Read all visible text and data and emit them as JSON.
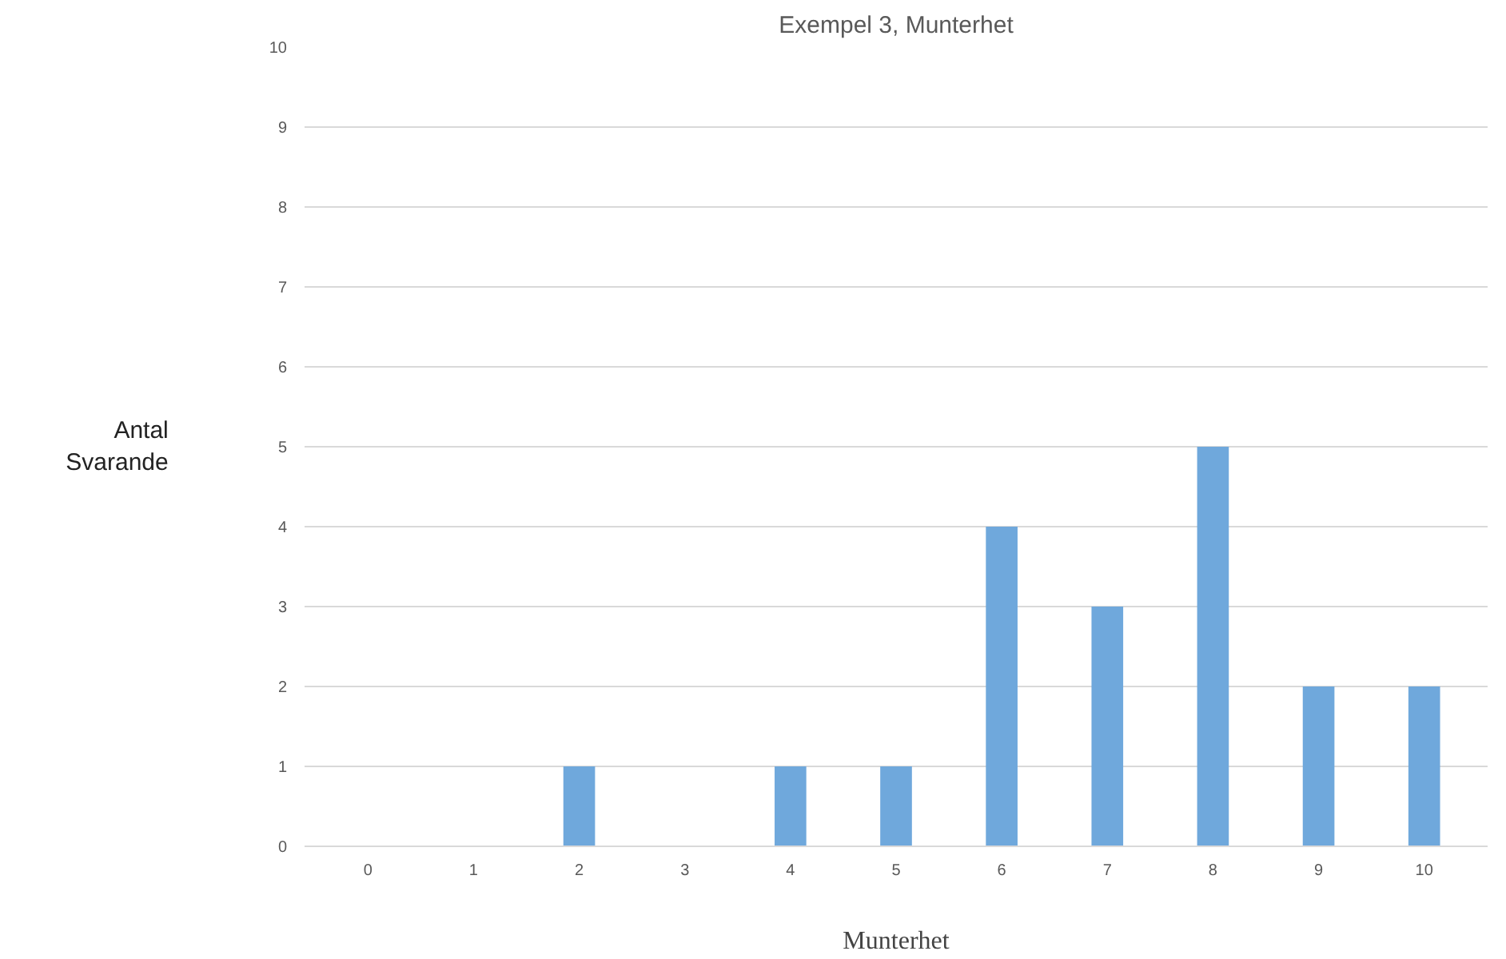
{
  "chart_data": {
    "type": "bar",
    "title": "Exempel 3, Munterhet",
    "xlabel": "Munterhet",
    "ylabel": "Antal\nSvarande",
    "categories": [
      "0",
      "1",
      "2",
      "3",
      "4",
      "5",
      "6",
      "7",
      "8",
      "9",
      "10"
    ],
    "values": [
      0,
      0,
      1,
      0,
      1,
      1,
      4,
      3,
      5,
      2,
      2
    ],
    "color": "#6fa8dc",
    "ylim": [
      0,
      10
    ],
    "yticks": [
      0,
      1,
      2,
      3,
      4,
      5,
      6,
      7,
      8,
      9,
      10
    ],
    "grid": "y"
  }
}
